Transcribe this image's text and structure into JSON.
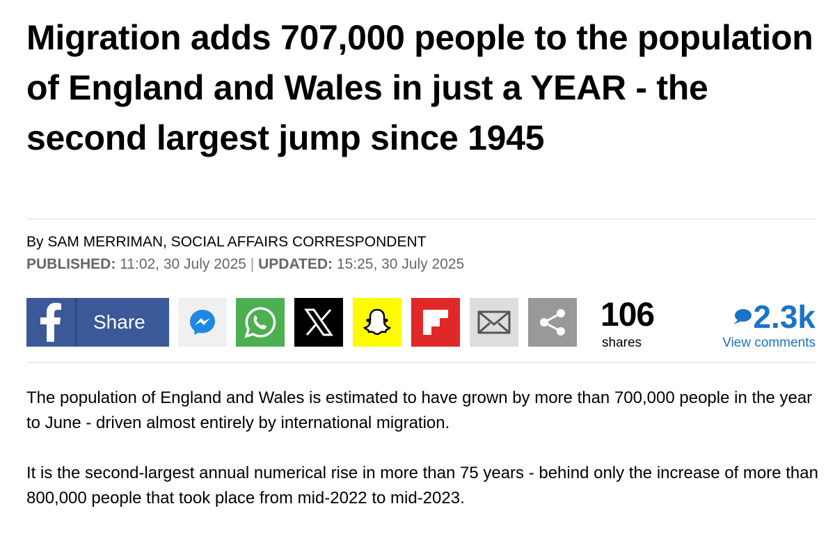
{
  "article": {
    "headline": "Migration adds 707,000 people to the population of England and Wales in just a YEAR - the second largest jump since 1945",
    "byline": "By SAM MERRIMAN, SOCIAL AFFAIRS CORRESPONDENT",
    "published_label": "PUBLISHED:",
    "published_time": "11:02, 30 July 2025",
    "updated_label": "UPDATED:",
    "updated_time": "15:25, 30 July 2025",
    "share_button": "Share",
    "shares_count": "106",
    "shares_label": "shares",
    "comments_count": "2.3k",
    "comments_link": "View comments",
    "paragraphs": [
      "The population of England and Wales is estimated to have grown by more than 700,000 people in the year to June - driven almost entirely by international migration.",
      "It is the second-largest annual numerical rise in more than 75 years - behind only the increase of more than 800,000 people that took place from mid-2022 to mid-2023."
    ]
  }
}
